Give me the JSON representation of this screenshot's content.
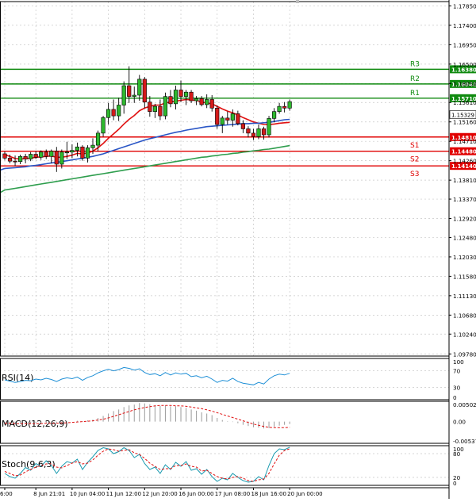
{
  "chart_data": {
    "type": "candlestick",
    "price_panel": {
      "ylim": [
        1.0973,
        1.1795
      ],
      "ticks": [
        1.1785,
        1.174,
        1.1695,
        1.165,
        1.1605,
        1.1561,
        1.1516,
        1.1471,
        1.1426,
        1.1381,
        1.1337,
        1.1292,
        1.1248,
        1.1203,
        1.1158,
        1.1113,
        1.1068,
        1.1024,
        1.0978
      ],
      "tick_labels": [
        "1.17850",
        "1.17400",
        "1.16950",
        "1.16500",
        "1.16050",
        "1.15610",
        "1.15160",
        "1.14710",
        "1.14260",
        "1.13810",
        "1.13370",
        "1.12920",
        "1.12480",
        "1.12030",
        "1.11580",
        "1.11130",
        "1.10680",
        "1.10240",
        "1.09780"
      ],
      "current_price": "1.15329",
      "levels": [
        {
          "name": "R3",
          "value": 1.638,
          "label": "1.16380",
          "price": 1.1638,
          "kind": "resistance"
        },
        {
          "name": "R2",
          "value": 1.604,
          "label": "1.16040",
          "price": 1.1604,
          "kind": "resistance"
        },
        {
          "name": "R1",
          "value": 1.571,
          "label": "1.15710",
          "price": 1.1571,
          "kind": "resistance"
        },
        {
          "name": "S1",
          "value": 1.481,
          "label": "1.14810",
          "price": 1.1481,
          "kind": "support"
        },
        {
          "name": "S2",
          "value": 1.448,
          "label": "1.14480",
          "price": 1.1448,
          "kind": "support"
        },
        {
          "name": "S3",
          "value": 1.414,
          "label": "1.14140",
          "price": 1.1414,
          "kind": "support"
        }
      ],
      "candles": [
        [
          1.1442,
          1.1447,
          1.1428,
          1.1432
        ],
        [
          1.1432,
          1.144,
          1.142,
          1.1425
        ],
        [
          1.1425,
          1.1438,
          1.1414,
          1.1424
        ],
        [
          1.1424,
          1.144,
          1.1418,
          1.1436
        ],
        [
          1.1436,
          1.1442,
          1.142,
          1.143
        ],
        [
          1.143,
          1.1446,
          1.1425,
          1.1441
        ],
        [
          1.1441,
          1.1448,
          1.143,
          1.1434
        ],
        [
          1.1434,
          1.145,
          1.1428,
          1.1446
        ],
        [
          1.1446,
          1.1452,
          1.143,
          1.1436
        ],
        [
          1.1436,
          1.1452,
          1.142,
          1.1448
        ],
        [
          1.1448,
          1.1458,
          1.14,
          1.1418
        ],
        [
          1.1418,
          1.1452,
          1.1408,
          1.1446
        ],
        [
          1.1446,
          1.147,
          1.143,
          1.1446
        ],
        [
          1.1446,
          1.1464,
          1.1432,
          1.145
        ],
        [
          1.145,
          1.1468,
          1.1436,
          1.1458
        ],
        [
          1.1458,
          1.1462,
          1.1426,
          1.1432
        ],
        [
          1.1432,
          1.1462,
          1.1422,
          1.1456
        ],
        [
          1.1456,
          1.1478,
          1.1442,
          1.1462
        ],
        [
          1.1462,
          1.1496,
          1.1448,
          1.149
        ],
        [
          1.149,
          1.153,
          1.1482,
          1.1526
        ],
        [
          1.1526,
          1.156,
          1.151,
          1.1545
        ],
        [
          1.1545,
          1.1568,
          1.152,
          1.153
        ],
        [
          1.153,
          1.1572,
          1.1518,
          1.1555
        ],
        [
          1.1555,
          1.161,
          1.1535,
          1.16
        ],
        [
          1.16,
          1.1645,
          1.156,
          1.1575
        ],
        [
          1.1575,
          1.1598,
          1.156,
          1.1578
        ],
        [
          1.1578,
          1.1625,
          1.1565,
          1.1615
        ],
        [
          1.1615,
          1.162,
          1.1548,
          1.1562
        ],
        [
          1.1562,
          1.1576,
          1.1528,
          1.154
        ],
        [
          1.154,
          1.1558,
          1.1525,
          1.1552
        ],
        [
          1.1552,
          1.1568,
          1.152,
          1.153
        ],
        [
          1.153,
          1.1584,
          1.1522,
          1.1575
        ],
        [
          1.1575,
          1.159,
          1.155,
          1.1558
        ],
        [
          1.1558,
          1.16,
          1.1545,
          1.159
        ],
        [
          1.159,
          1.1612,
          1.1562,
          1.1575
        ],
        [
          1.1575,
          1.159,
          1.1555,
          1.1585
        ],
        [
          1.1585,
          1.159,
          1.156,
          1.1565
        ],
        [
          1.1565,
          1.1576,
          1.1555,
          1.157
        ],
        [
          1.157,
          1.1576,
          1.1552,
          1.1556
        ],
        [
          1.1556,
          1.158,
          1.1548,
          1.1568
        ],
        [
          1.1568,
          1.1578,
          1.154,
          1.1548
        ],
        [
          1.1548,
          1.1554,
          1.15,
          1.151
        ],
        [
          1.151,
          1.153,
          1.149,
          1.1525
        ],
        [
          1.1525,
          1.154,
          1.151,
          1.152
        ],
        [
          1.152,
          1.1545,
          1.1505,
          1.1535
        ],
        [
          1.1535,
          1.1542,
          1.1508,
          1.1512
        ],
        [
          1.1512,
          1.152,
          1.149,
          1.15
        ],
        [
          1.15,
          1.1506,
          1.148,
          1.149
        ],
        [
          1.149,
          1.15,
          1.1474,
          1.1482
        ],
        [
          1.1482,
          1.151,
          1.1476,
          1.15
        ],
        [
          1.15,
          1.1505,
          1.1475,
          1.1486
        ],
        [
          1.1486,
          1.153,
          1.148,
          1.1524
        ],
        [
          1.1524,
          1.1548,
          1.1515,
          1.154
        ],
        [
          1.154,
          1.156,
          1.1535,
          1.1552
        ],
        [
          1.1552,
          1.1562,
          1.1538,
          1.1548
        ],
        [
          1.1548,
          1.1568,
          1.1542,
          1.1563
        ]
      ],
      "moving_averages": [
        {
          "name": "MA fast",
          "color": "#e01010",
          "values": [
            1.144,
            1.1436,
            1.1431,
            1.143,
            1.1431,
            1.1432,
            1.1434,
            1.1435,
            1.1436,
            1.1437,
            1.1434,
            1.1434,
            1.1436,
            1.1439,
            1.1443,
            1.1442,
            1.1444,
            1.1448,
            1.1456,
            1.1466,
            1.1478,
            1.1488,
            1.1499,
            1.1511,
            1.1522,
            1.1531,
            1.1542,
            1.1548,
            1.1552,
            1.1555,
            1.1555,
            1.156,
            1.1562,
            1.1564,
            1.1566,
            1.1568,
            1.1567,
            1.1566,
            1.1562,
            1.156,
            1.1558,
            1.1552,
            1.1546,
            1.1541,
            1.1537,
            1.1532,
            1.1526,
            1.1521,
            1.1516,
            1.1513,
            1.151,
            1.151,
            1.1511,
            1.1513,
            1.1514,
            1.1515
          ]
        },
        {
          "name": "MA mid",
          "color": "#2a56c6",
          "values": [
            1.1408,
            1.1409,
            1.141,
            1.1411,
            1.1412,
            1.1414,
            1.1415,
            1.1417,
            1.1419,
            1.1421,
            1.1422,
            1.1424,
            1.1426,
            1.1428,
            1.143,
            1.1432,
            1.1434,
            1.1436,
            1.1439,
            1.1442,
            1.1446,
            1.145,
            1.1454,
            1.1458,
            1.1462,
            1.1466,
            1.147,
            1.1474,
            1.1477,
            1.148,
            1.1483,
            1.1486,
            1.1489,
            1.1492,
            1.1494,
            1.1497,
            1.1499,
            1.1501,
            1.1503,
            1.1505,
            1.1506,
            1.1507,
            1.1508,
            1.1509,
            1.151,
            1.1511,
            1.1512,
            1.1512,
            1.1513,
            1.1513,
            1.1514,
            1.1515,
            1.1517,
            1.1519,
            1.1521,
            1.1522
          ]
        },
        {
          "name": "MA slow",
          "color": "#2f9e4e",
          "values": [
            1.1358,
            1.136,
            1.1362,
            1.1364,
            1.1366,
            1.1368,
            1.137,
            1.1372,
            1.1374,
            1.1376,
            1.1378,
            1.138,
            1.1382,
            1.1384,
            1.1386,
            1.1388,
            1.139,
            1.1392,
            1.1394,
            1.1396,
            1.1398,
            1.14,
            1.1402,
            1.1404,
            1.1406,
            1.1408,
            1.141,
            1.1412,
            1.1414,
            1.1416,
            1.1418,
            1.142,
            1.1422,
            1.1424,
            1.1426,
            1.1428,
            1.143,
            1.1432,
            1.1434,
            1.1435,
            1.1437,
            1.1438,
            1.144,
            1.1441,
            1.1443,
            1.1444,
            1.1446,
            1.1447,
            1.1449,
            1.145,
            1.1452,
            1.1453,
            1.1455,
            1.1457,
            1.1459,
            1.1461
          ]
        }
      ]
    },
    "rsi_panel": {
      "label": "RSI(14)",
      "ylim": [
        0,
        100
      ],
      "tick_labels": [
        "100",
        "70",
        "30",
        "0"
      ],
      "tick_values": [
        100,
        70,
        30,
        0
      ],
      "values": [
        48,
        45,
        42,
        44,
        47,
        46,
        50,
        48,
        52,
        49,
        44,
        50,
        53,
        51,
        55,
        47,
        54,
        58,
        65,
        70,
        74,
        70,
        73,
        78,
        76,
        72,
        75,
        66,
        61,
        63,
        58,
        66,
        60,
        65,
        62,
        64,
        56,
        58,
        53,
        57,
        50,
        42,
        47,
        45,
        52,
        44,
        40,
        38,
        36,
        42,
        38,
        50,
        58,
        62,
        60,
        64
      ]
    },
    "macd_panel": {
      "label": "MACD(12,26,9)",
      "ylim": [
        -0.005373,
        0.005029
      ],
      "tick_labels": [
        "0.005029",
        "0.00",
        "-0.005373"
      ],
      "tick_values": [
        0.005029,
        0.0,
        -0.005373
      ],
      "histogram": [
        -0.0004,
        -0.0005,
        -0.0006,
        -0.0006,
        -0.0005,
        -0.0005,
        -0.0004,
        -0.0004,
        -0.0003,
        -0.0003,
        -0.0003,
        -0.0002,
        -0.0001,
        0.0,
        0.0002,
        0.0001,
        0.0003,
        0.0005,
        0.0009,
        0.0014,
        0.002,
        0.0026,
        0.003,
        0.0036,
        0.004,
        0.0042,
        0.0046,
        0.0045,
        0.0043,
        0.0041,
        0.0039,
        0.004,
        0.0038,
        0.0038,
        0.0036,
        0.0034,
        0.003,
        0.0027,
        0.0023,
        0.002,
        0.0016,
        0.0009,
        0.0004,
        0.0001,
        -0.0001,
        -0.0004,
        -0.0008,
        -0.0011,
        -0.0014,
        -0.0015,
        -0.0017,
        -0.0016,
        -0.0013,
        -0.001,
        -0.0008,
        -0.0006
      ],
      "signal": [
        -0.0004,
        -0.0004,
        -0.0005,
        -0.0005,
        -0.0005,
        -0.0005,
        -0.0005,
        -0.0005,
        -0.0004,
        -0.0004,
        -0.0004,
        -0.0003,
        -0.0003,
        -0.0002,
        -0.0001,
        0.0,
        0.0001,
        0.0002,
        0.0004,
        0.0006,
        0.0009,
        0.0013,
        0.0017,
        0.0021,
        0.0025,
        0.0029,
        0.0032,
        0.0035,
        0.0037,
        0.0039,
        0.004,
        0.004,
        0.004,
        0.0039,
        0.0039,
        0.0038,
        0.0036,
        0.0034,
        0.0032,
        0.0029,
        0.0026,
        0.0022,
        0.0018,
        0.0014,
        0.001,
        0.0006,
        0.0002,
        -0.0002,
        -0.0006,
        -0.0009,
        -0.0012,
        -0.0014,
        -0.0015,
        -0.0015,
        -0.0015,
        -0.0014
      ]
    },
    "stoch_panel": {
      "label": "Stoch(9,6,3)",
      "ylim": [
        0,
        100
      ],
      "tick_labels": [
        "100",
        "80",
        "20",
        "0"
      ],
      "tick_values": [
        100,
        80,
        20,
        0
      ],
      "k": [
        30,
        22,
        18,
        30,
        45,
        38,
        55,
        48,
        62,
        50,
        30,
        48,
        60,
        56,
        66,
        40,
        58,
        72,
        88,
        95,
        92,
        80,
        85,
        95,
        88,
        70,
        78,
        55,
        40,
        46,
        30,
        52,
        40,
        58,
        48,
        60,
        38,
        42,
        28,
        40,
        22,
        10,
        18,
        14,
        30,
        20,
        12,
        8,
        10,
        22,
        14,
        50,
        80,
        92,
        90,
        96
      ],
      "d": [
        35,
        30,
        24,
        26,
        34,
        40,
        46,
        50,
        54,
        54,
        46,
        44,
        50,
        56,
        60,
        54,
        56,
        64,
        76,
        86,
        92,
        90,
        86,
        88,
        90,
        82,
        78,
        68,
        56,
        48,
        40,
        42,
        42,
        50,
        50,
        54,
        48,
        46,
        36,
        38,
        30,
        22,
        18,
        16,
        20,
        22,
        18,
        12,
        10,
        14,
        16,
        30,
        54,
        76,
        88,
        92
      ]
    },
    "x_axis": {
      "tick_labels": [
        "6:00",
        "8 Jun 21:01",
        "10 Jun 04:00",
        "11 Jun 12:00",
        "12 Jun 20:00",
        "16 Jun 00:00",
        "17 Jun 08:00",
        "18 Jun 16:00",
        "20 Jun 00:00"
      ],
      "tick_candle_index": [
        0,
        6,
        13,
        20,
        27,
        34,
        41,
        48,
        55
      ]
    }
  }
}
